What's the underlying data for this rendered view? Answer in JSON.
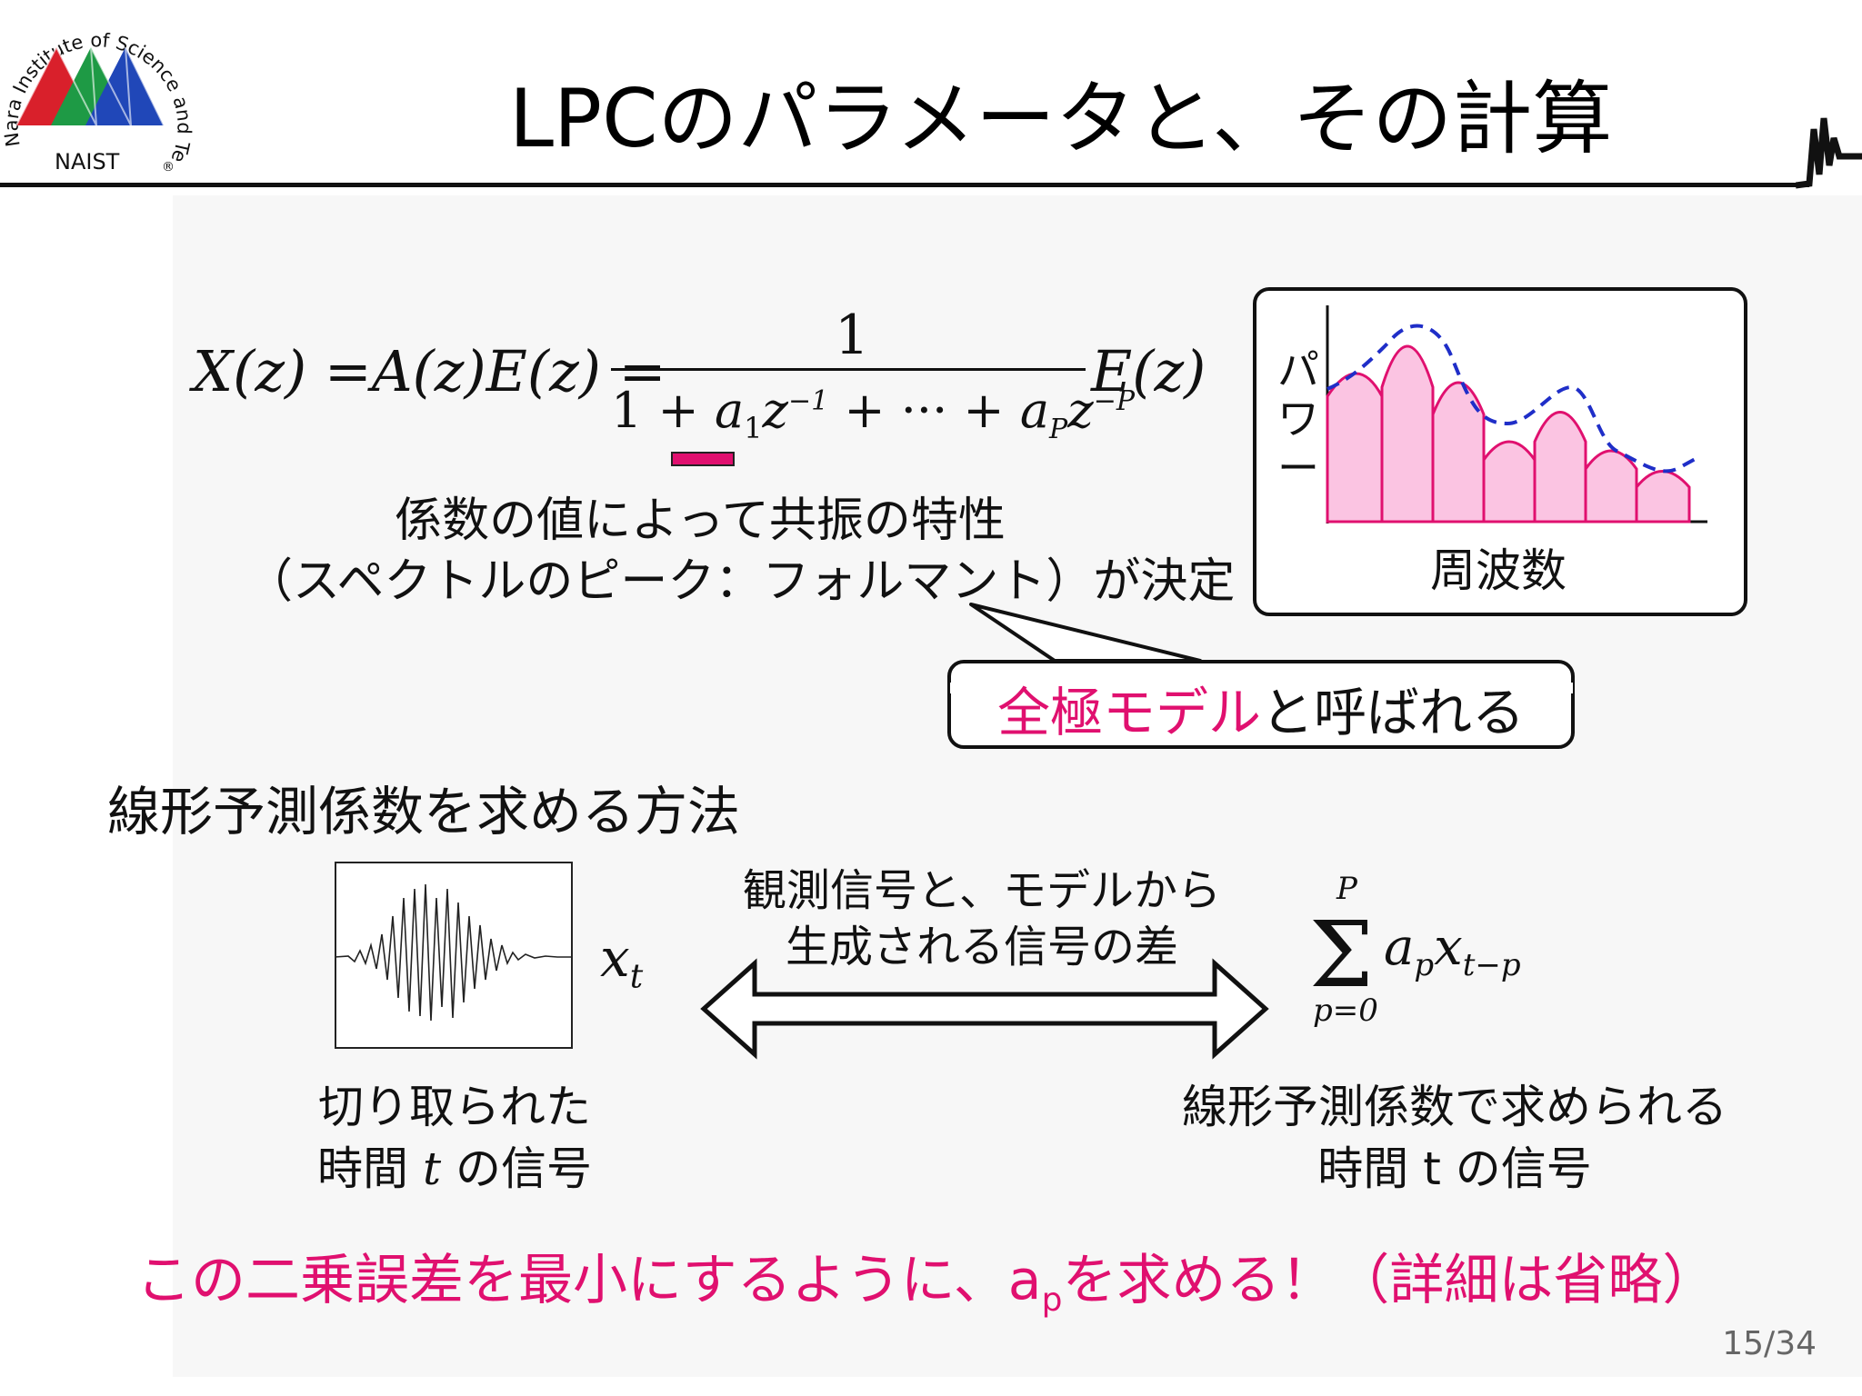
{
  "logo": {
    "ring_text": "Nara Institute of Science and Technology",
    "abbr": "NAIST",
    "registered": "®"
  },
  "title": "LPCのパラメータと、その計算",
  "formula": {
    "lhs": "X(z) =A(z)E(z) =",
    "numerator": "1",
    "rhs": "E(z)"
  },
  "coef_note": {
    "line1": "係数の値によって共振の特性",
    "line2": "（スペクトルのピーク：フォルマント）が決定"
  },
  "spectrum": {
    "ylabel": "パワー",
    "xlabel": "周波数",
    "fill_color": "#fbc4e2",
    "stroke_color": "#e0106f",
    "envelope_color": "#1f2ec8"
  },
  "callout": {
    "highlight": "全極モデル",
    "rest": "と呼ばれる"
  },
  "section_heading": "線形予測係数を求める方法",
  "signal": {
    "symbol": "x",
    "subscript": "t",
    "caption_line1": "切り取られた",
    "caption_line2_a": "時間 ",
    "caption_line2_t": "t",
    "caption_line2_b": " の信号"
  },
  "arrow_label": {
    "line1": "観測信号と、モデルから",
    "line2": "生成される信号の差"
  },
  "prediction": {
    "sum_upper": "P",
    "sum_lower": "p=0",
    "caption_line1": "線形予測係数で求められる",
    "caption_line2": "時間 t の信号"
  },
  "conclusion": {
    "before": "この二乗誤差を最小にするように、a",
    "sub": "p",
    "after": "を求める！（詳細は省略）"
  },
  "page_number": "15/34",
  "colors": {
    "accent": "#e0106f",
    "logo_red": "#d9202b",
    "logo_green": "#1e9a45",
    "logo_blue": "#2047b8"
  }
}
